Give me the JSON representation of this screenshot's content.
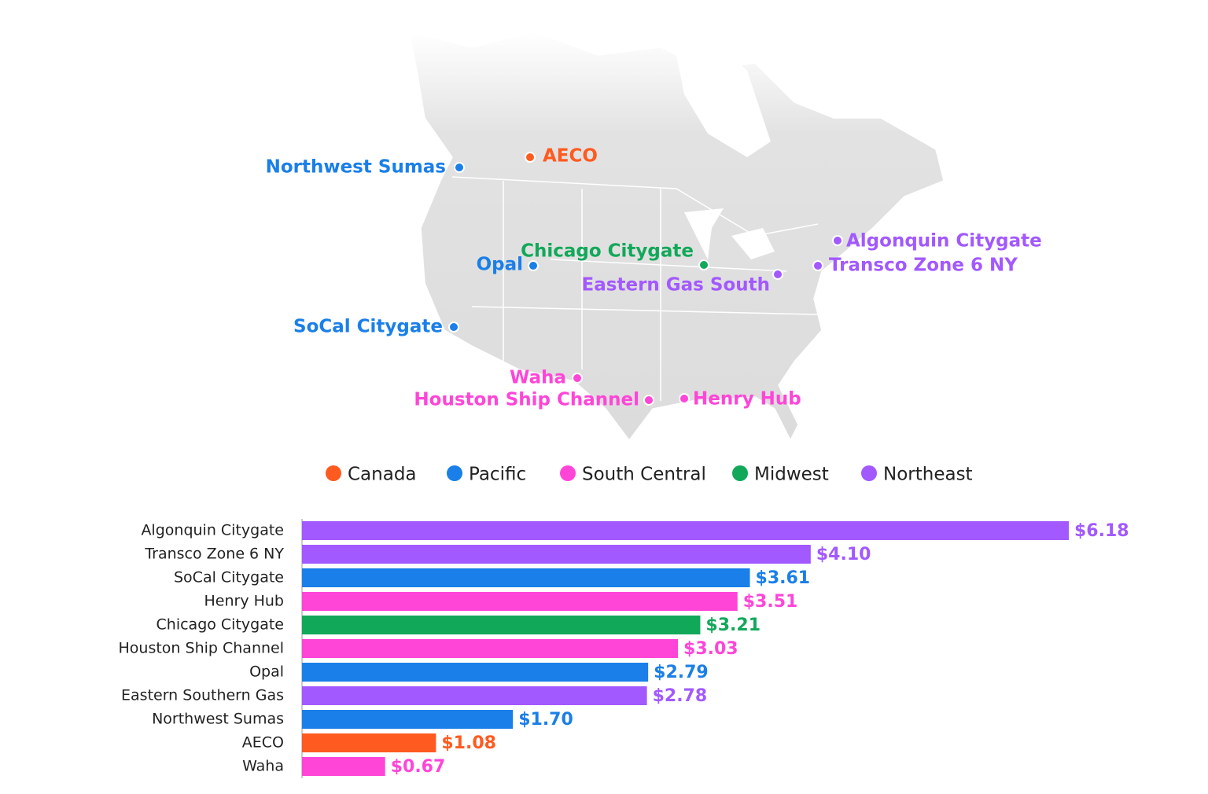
{
  "chart_data": {
    "type": "bar",
    "orientation": "horizontal",
    "categories": [
      "Algonquin Citygate",
      "Transco Zone 6 NY",
      "SoCal Citygate",
      "Henry Hub",
      "Chicago Citygate",
      "Houston Ship Channel",
      "Opal",
      "Eastern Southern Gas",
      "Northwest Sumas",
      "AECO",
      "Waha"
    ],
    "values": [
      6.18,
      4.1,
      3.61,
      3.51,
      3.21,
      3.03,
      2.79,
      2.78,
      1.7,
      1.08,
      0.67
    ],
    "value_labels": [
      "$6.18",
      "$4.10",
      "$3.61",
      "$3.51",
      "$3.21",
      "$3.03",
      "$2.79",
      "$2.78",
      "$1.70",
      "$1.08",
      "$0.67"
    ],
    "colors": [
      "#a259ff",
      "#a259ff",
      "#1a7fe8",
      "#ff45d8",
      "#12a85a",
      "#ff45d8",
      "#1a7fe8",
      "#a259ff",
      "#1a7fe8",
      "#ff5a1f",
      "#ff45d8"
    ],
    "legend": [
      {
        "name": "Canada",
        "color": "#ff5a1f"
      },
      {
        "name": "Pacific",
        "color": "#1a7fe8"
      },
      {
        "name": "South Central",
        "color": "#ff45d8"
      },
      {
        "name": "Midwest",
        "color": "#12a85a"
      },
      {
        "name": "Northeast",
        "color": "#a259ff"
      }
    ]
  },
  "map": {
    "points": [
      {
        "label": "Northwest Sumas",
        "color": "#1a7fe8"
      },
      {
        "label": "AECO",
        "color": "#ff5a1f"
      },
      {
        "label": "Algonquin Citygate",
        "color": "#a259ff"
      },
      {
        "label": "Transco Zone 6 NY",
        "color": "#a259ff"
      },
      {
        "label": "Chicago Citygate",
        "color": "#12a85a"
      },
      {
        "label": "Opal",
        "color": "#1a7fe8"
      },
      {
        "label": "Eastern Gas South",
        "color": "#a259ff"
      },
      {
        "label": "SoCal Citygate",
        "color": "#1a7fe8"
      },
      {
        "label": "Waha",
        "color": "#ff45d8"
      },
      {
        "label": "Houston Ship Channel",
        "color": "#ff45d8"
      },
      {
        "label": "Henry Hub",
        "color": "#ff45d8"
      }
    ]
  }
}
